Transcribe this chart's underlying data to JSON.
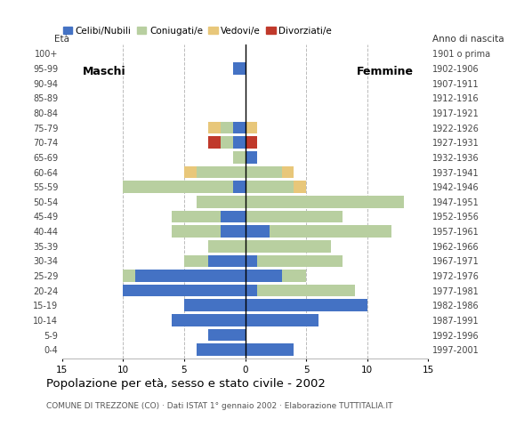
{
  "age_groups": [
    "0-4",
    "5-9",
    "10-14",
    "15-19",
    "20-24",
    "25-29",
    "30-34",
    "35-39",
    "40-44",
    "45-49",
    "50-54",
    "55-59",
    "60-64",
    "65-69",
    "70-74",
    "75-79",
    "80-84",
    "85-89",
    "90-94",
    "95-99",
    "100+"
  ],
  "birth_years": [
    "1997-2001",
    "1992-1996",
    "1987-1991",
    "1982-1986",
    "1977-1981",
    "1972-1976",
    "1967-1971",
    "1962-1966",
    "1957-1961",
    "1952-1956",
    "1947-1951",
    "1942-1946",
    "1937-1941",
    "1932-1936",
    "1927-1931",
    "1922-1926",
    "1917-1921",
    "1912-1916",
    "1907-1911",
    "1902-1906",
    "1901 o prima"
  ],
  "males": {
    "celibi": [
      4,
      3,
      6,
      5,
      10,
      9,
      3,
      0,
      2,
      2,
      0,
      1,
      0,
      0,
      1,
      1,
      0,
      0,
      0,
      1,
      0
    ],
    "coniugati": [
      0,
      0,
      0,
      0,
      0,
      1,
      2,
      3,
      4,
      4,
      4,
      9,
      4,
      1,
      1,
      1,
      0,
      0,
      0,
      0,
      0
    ],
    "vedovi": [
      0,
      0,
      0,
      0,
      0,
      0,
      0,
      0,
      0,
      0,
      0,
      0,
      1,
      0,
      0,
      1,
      0,
      0,
      0,
      0,
      0
    ],
    "divorziati": [
      0,
      0,
      0,
      0,
      0,
      0,
      0,
      0,
      0,
      0,
      0,
      0,
      0,
      0,
      1,
      0,
      0,
      0,
      0,
      0,
      0
    ]
  },
  "females": {
    "nubili": [
      4,
      0,
      6,
      10,
      1,
      3,
      1,
      0,
      2,
      0,
      0,
      0,
      0,
      1,
      0,
      0,
      0,
      0,
      0,
      0,
      0
    ],
    "coniugate": [
      0,
      0,
      0,
      0,
      8,
      2,
      7,
      7,
      10,
      8,
      13,
      4,
      3,
      0,
      0,
      0,
      0,
      0,
      0,
      0,
      0
    ],
    "vedove": [
      0,
      0,
      0,
      0,
      0,
      0,
      0,
      0,
      0,
      0,
      0,
      1,
      1,
      0,
      0,
      1,
      0,
      0,
      0,
      0,
      0
    ],
    "divorziate": [
      0,
      0,
      0,
      0,
      0,
      0,
      0,
      0,
      0,
      0,
      0,
      0,
      0,
      0,
      1,
      0,
      0,
      0,
      0,
      0,
      0
    ]
  },
  "color_celibi": "#4472c4",
  "color_coniugati": "#b8cfa0",
  "color_vedovi": "#e8c77a",
  "color_divorziati": "#c0392b",
  "title": "Popolazione per età, sesso e stato civile - 2002",
  "subtitle": "COMUNE DI TREZZONE (CO) · Dati ISTAT 1° gennaio 2002 · Elaborazione TUTTITALIA.IT",
  "xlabel_left": "Maschi",
  "xlabel_right": "Femmine",
  "ylabel": "Età",
  "ylabel_right": "Anno di nascita",
  "xlim": 15,
  "background_color": "#ffffff"
}
